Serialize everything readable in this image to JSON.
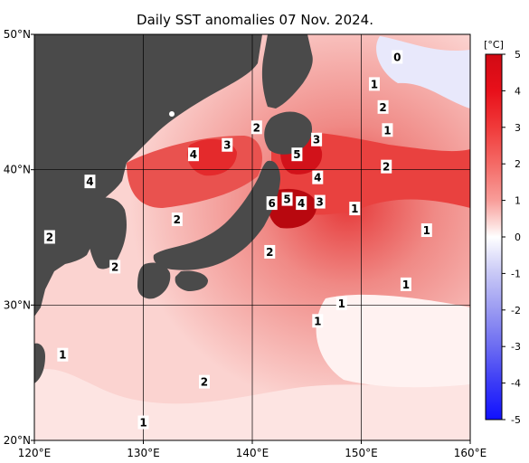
{
  "title": "Daily SST anomalies 07 Nov. 2024.",
  "map": {
    "lon_range": [
      120,
      160
    ],
    "lat_range": [
      20,
      50
    ],
    "lon_ticks": [
      "120°E",
      "130°E",
      "140°E",
      "150°E",
      "160°E"
    ],
    "lat_ticks": [
      "50°N",
      "40°N",
      "30°N",
      "20°N"
    ],
    "land_color": "#4a4a4a",
    "grid": true
  },
  "colorbar": {
    "unit": "[°C]",
    "min": -5,
    "max": 5,
    "ticks": [
      "5",
      "4",
      "3",
      "2",
      "1",
      "0",
      "-1",
      "-2",
      "-3",
      "-4",
      "-5"
    ],
    "warm_color": "#e8101a",
    "cold_color": "#1a1aff",
    "neutral_color": "#ffffff"
  },
  "contour_labels": [
    {
      "text": "0",
      "lon": 153.3,
      "lat": 48.3
    },
    {
      "text": "1",
      "lon": 151.2,
      "lat": 46.3
    },
    {
      "text": "2",
      "lon": 152.0,
      "lat": 44.6
    },
    {
      "text": "2",
      "lon": 140.4,
      "lat": 43.1
    },
    {
      "text": "1",
      "lon": 152.4,
      "lat": 42.9
    },
    {
      "text": "3",
      "lon": 145.9,
      "lat": 42.2
    },
    {
      "text": "3",
      "lon": 137.7,
      "lat": 41.8
    },
    {
      "text": "4",
      "lon": 134.6,
      "lat": 41.1
    },
    {
      "text": "5",
      "lon": 144.1,
      "lat": 41.1
    },
    {
      "text": "2",
      "lon": 152.3,
      "lat": 40.2
    },
    {
      "text": "4",
      "lon": 146.0,
      "lat": 39.4
    },
    {
      "text": "4",
      "lon": 125.1,
      "lat": 39.1
    },
    {
      "text": "5",
      "lon": 143.2,
      "lat": 37.8
    },
    {
      "text": "6",
      "lon": 141.8,
      "lat": 37.5
    },
    {
      "text": "4",
      "lon": 144.5,
      "lat": 37.5
    },
    {
      "text": "3",
      "lon": 146.2,
      "lat": 37.6
    },
    {
      "text": "1",
      "lon": 149.4,
      "lat": 37.1
    },
    {
      "text": "2",
      "lon": 133.1,
      "lat": 36.3
    },
    {
      "text": "1",
      "lon": 156.0,
      "lat": 35.5
    },
    {
      "text": "2",
      "lon": 121.4,
      "lat": 35.0
    },
    {
      "text": "2",
      "lon": 141.6,
      "lat": 33.9
    },
    {
      "text": "2",
      "lon": 127.4,
      "lat": 32.8
    },
    {
      "text": "1",
      "lon": 154.1,
      "lat": 31.5
    },
    {
      "text": "1",
      "lon": 148.2,
      "lat": 30.1
    },
    {
      "text": "1",
      "lon": 146.0,
      "lat": 28.8
    },
    {
      "text": "1",
      "lon": 122.6,
      "lat": 26.3
    },
    {
      "text": "2",
      "lon": 135.6,
      "lat": 24.3
    },
    {
      "text": "1",
      "lon": 130.0,
      "lat": 21.3
    }
  ]
}
